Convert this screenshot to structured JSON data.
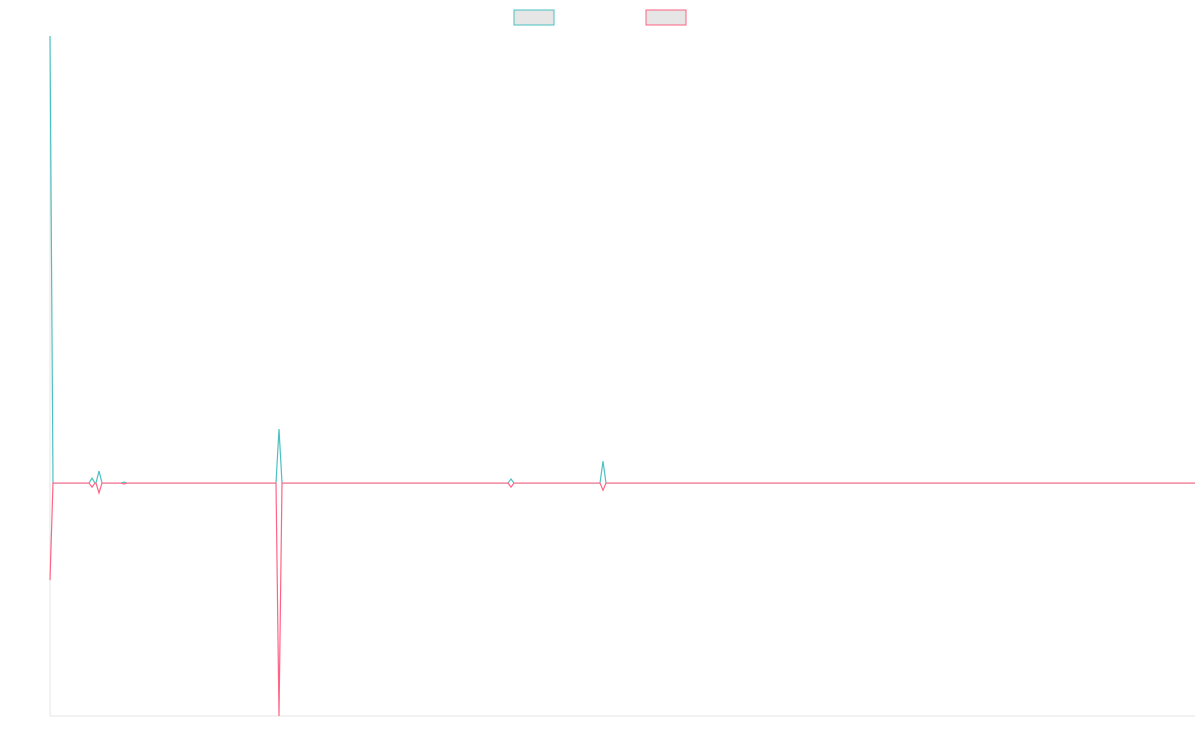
{
  "chart_data": {
    "type": "line",
    "x": [
      0,
      3,
      39,
      42,
      45,
      46,
      49,
      52,
      71,
      74,
      77,
      226,
      229,
      232,
      458,
      461,
      464,
      550,
      553,
      556,
      1145
    ],
    "xlim": [
      0,
      1145
    ],
    "ylim": [
      -52.1,
      100
    ],
    "legend": "top",
    "series": [
      {
        "color": "#4bc0c0",
        "values": [
          100,
          0,
          0,
          1.1,
          0,
          0,
          2.7,
          0,
          0,
          0.2,
          0,
          0,
          12.1,
          0,
          0,
          0.9,
          0,
          0,
          4.9,
          0,
          0
        ]
      },
      {
        "color": "#ff6384",
        "values": [
          -21.7,
          0,
          0,
          -0.9,
          0,
          0,
          -2.2,
          0,
          0,
          -0.2,
          0,
          0,
          -52.1,
          0,
          0,
          -0.9,
          0,
          0,
          -1.6,
          0,
          0
        ]
      }
    ]
  }
}
